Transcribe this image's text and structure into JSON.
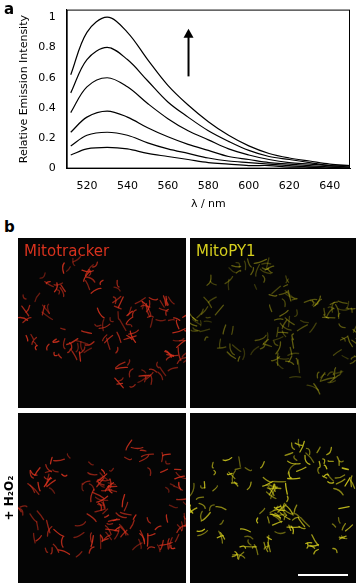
{
  "panel_labels": [
    "a",
    "b"
  ],
  "chart_data": {
    "type": "line",
    "x": [
      512,
      520,
      530,
      540,
      550,
      560,
      570,
      580,
      590,
      600,
      610,
      620,
      630,
      640,
      650
    ],
    "series": [
      {
        "color": "#000000",
        "values": [
          0.62,
          0.9,
          1.0,
          0.9,
          0.72,
          0.55,
          0.42,
          0.31,
          0.22,
          0.15,
          0.1,
          0.07,
          0.05,
          0.03,
          0.02
        ]
      },
      {
        "color": "#000000",
        "values": [
          0.5,
          0.72,
          0.8,
          0.72,
          0.58,
          0.44,
          0.34,
          0.25,
          0.18,
          0.12,
          0.08,
          0.06,
          0.04,
          0.02,
          0.02
        ]
      },
      {
        "color": "#000000",
        "values": [
          0.37,
          0.54,
          0.6,
          0.54,
          0.43,
          0.33,
          0.25,
          0.19,
          0.13,
          0.09,
          0.06,
          0.04,
          0.03,
          0.02,
          0.01
        ]
      },
      {
        "color": "#000000",
        "values": [
          0.24,
          0.34,
          0.38,
          0.34,
          0.27,
          0.21,
          0.16,
          0.12,
          0.08,
          0.06,
          0.04,
          0.03,
          0.02,
          0.01,
          0.01
        ]
      },
      {
        "color": "#000000",
        "values": [
          0.15,
          0.22,
          0.24,
          0.22,
          0.17,
          0.13,
          0.1,
          0.07,
          0.05,
          0.04,
          0.03,
          0.02,
          0.01,
          0.01,
          0
        ]
      },
      {
        "color": "#000000",
        "values": [
          0.09,
          0.13,
          0.14,
          0.13,
          0.1,
          0.08,
          0.06,
          0.04,
          0.03,
          0.02,
          0.02,
          0.01,
          0.01,
          0,
          0
        ]
      }
    ],
    "xlabel": "λ / nm",
    "ylabel": "Relative Emission Intensity",
    "xlim": [
      510,
      650
    ],
    "xticks": [
      520,
      540,
      560,
      580,
      600,
      620,
      640
    ],
    "ylim": [
      0,
      1.05
    ],
    "yticks": [
      0,
      0.2,
      0.4,
      0.6,
      0.8,
      1
    ],
    "grid": false
  },
  "images": {
    "columns": [
      "Mitotracker",
      "MitoPY1"
    ],
    "rows": [
      null,
      "+ H₂O₂"
    ]
  }
}
